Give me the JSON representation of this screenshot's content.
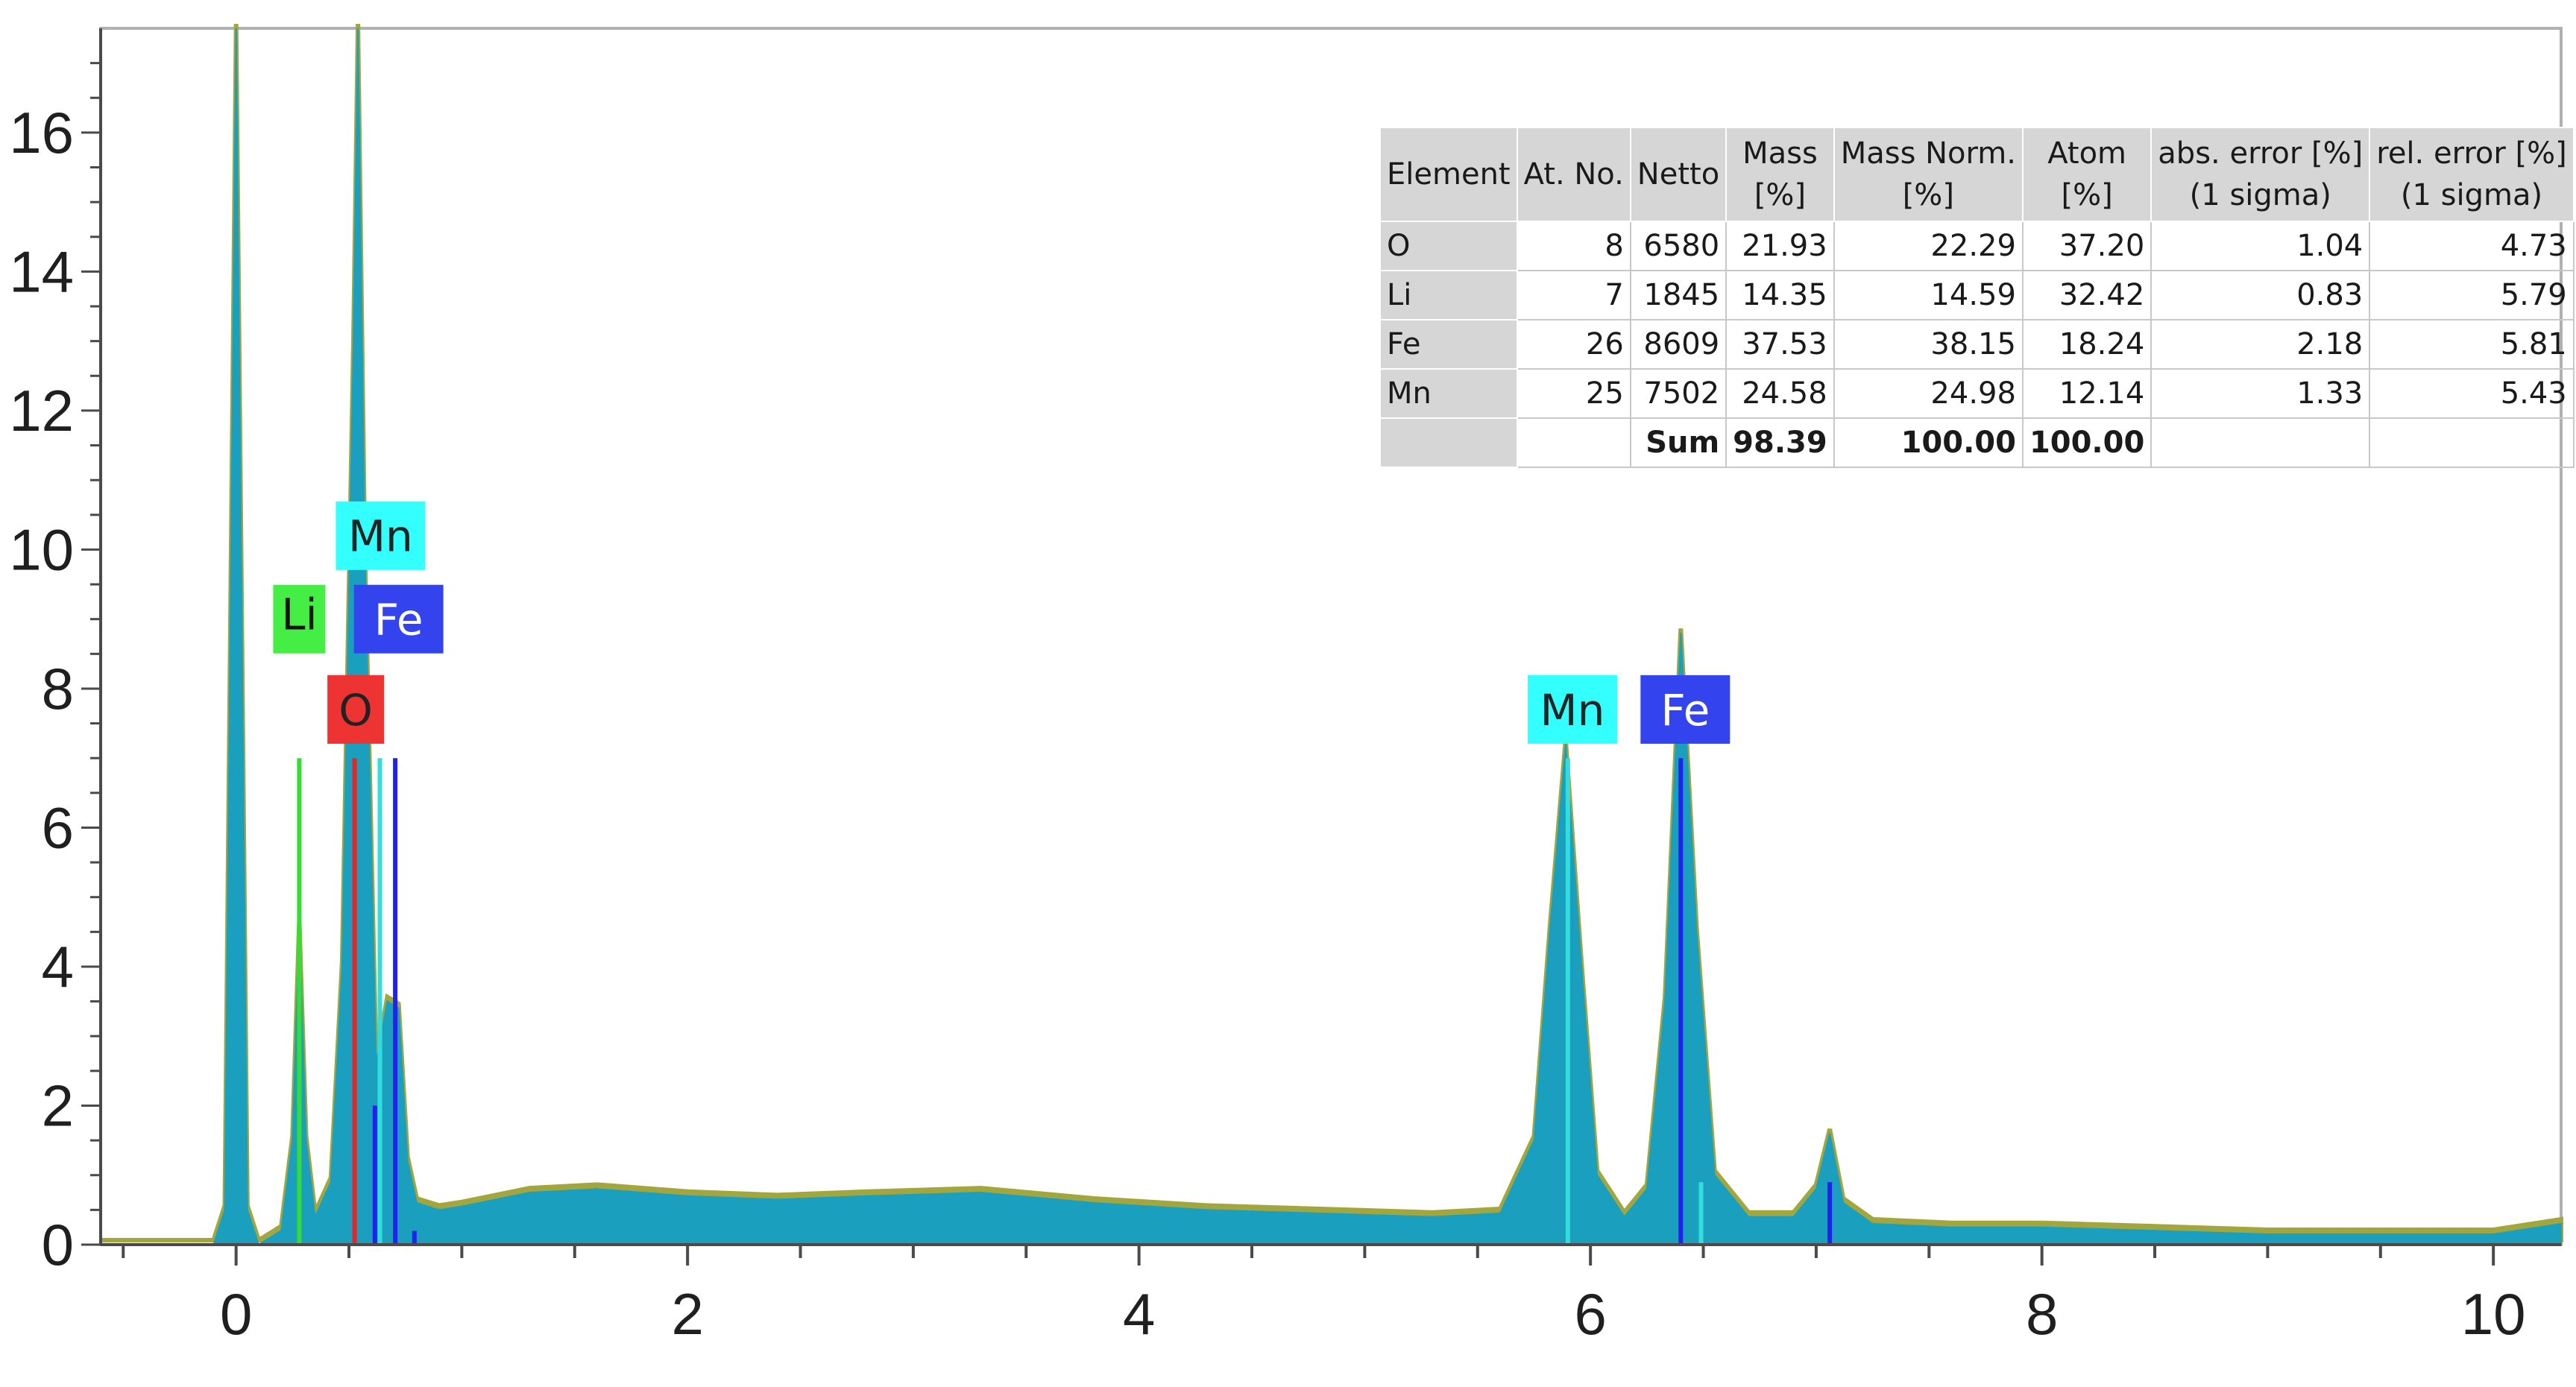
{
  "chart_data": {
    "type": "line",
    "title": "",
    "xlabel": "",
    "ylabel": "",
    "xlim": [
      -0.6,
      10.3
    ],
    "ylim": [
      0,
      17.5
    ],
    "x_ticks": [
      "0",
      "2",
      "4",
      "6",
      "8",
      "10"
    ],
    "y_ticks": [
      "0",
      "2",
      "4",
      "6",
      "8",
      "10",
      "12",
      "14",
      "16"
    ],
    "grid": false,
    "series": [
      {
        "type": "area",
        "color": "#1a9fbf",
        "x": [
          -0.6,
          -0.1,
          -0.05,
          0,
          0.05,
          0.1,
          0.2,
          0.25,
          0.28,
          0.31,
          0.35,
          0.42,
          0.47,
          0.52,
          0.54,
          0.57,
          0.62,
          0.67,
          0.72,
          0.76,
          0.8,
          0.9,
          1.0,
          1.3,
          1.6,
          2.0,
          2.4,
          2.8,
          3.3,
          3.8,
          4.3,
          4.8,
          5.3,
          5.6,
          5.75,
          5.82,
          5.89,
          5.96,
          6.03,
          6.15,
          6.25,
          6.33,
          6.4,
          6.47,
          6.55,
          6.7,
          6.9,
          7.0,
          7.06,
          7.12,
          7.25,
          7.6,
          8.0,
          8.5,
          9.0,
          9.5,
          10.0,
          10.3
        ],
        "y": [
          0,
          0,
          0.5,
          17.5,
          0.5,
          0,
          0.2,
          1.5,
          4.6,
          1.5,
          0.4,
          0.9,
          4.0,
          13.0,
          17.5,
          10.0,
          2.6,
          3.5,
          3.4,
          1.2,
          0.6,
          0.5,
          0.55,
          0.75,
          0.8,
          0.7,
          0.65,
          0.7,
          0.75,
          0.6,
          0.5,
          0.45,
          0.4,
          0.45,
          1.5,
          4.5,
          7.2,
          4.0,
          1.0,
          0.4,
          0.8,
          3.5,
          8.8,
          4.5,
          1.0,
          0.4,
          0.4,
          0.8,
          1.6,
          0.6,
          0.3,
          0.25,
          0.25,
          0.2,
          0.15,
          0.15,
          0.15,
          0.3
        ]
      }
    ],
    "element_lines": [
      {
        "element": "Li",
        "color": "#33dd33",
        "x": 0.28,
        "height": 7.0
      },
      {
        "element": "O",
        "color": "#ee2222",
        "x": 0.525,
        "height": 7.0
      },
      {
        "element": "Mn",
        "color": "#33dddd",
        "x": 0.637,
        "height": 7.0
      },
      {
        "element": "Fe",
        "color": "#2222ee",
        "x": 0.705,
        "height": 7.0
      },
      {
        "element": "Fe",
        "color": "#2222ee",
        "x": 0.615,
        "height": 2.0
      },
      {
        "element": "Fe",
        "color": "#2222ee",
        "x": 0.79,
        "height": 0.2
      },
      {
        "element": "Mn",
        "color": "#33dddd",
        "x": 5.9,
        "height": 7.0
      },
      {
        "element": "Mn",
        "color": "#33dddd",
        "x": 6.49,
        "height": 0.9
      },
      {
        "element": "Fe",
        "color": "#2222ee",
        "x": 6.4,
        "height": 7.0
      },
      {
        "element": "Fe",
        "color": "#2222ee",
        "x": 7.06,
        "height": 0.9
      }
    ],
    "annotations": [
      {
        "text": "Mn",
        "bg": "#33ffff",
        "fg": "#222222",
        "x": 0.64,
        "y": 10.2
      },
      {
        "text": "Li",
        "bg": "#44ee44",
        "fg": "#111111",
        "x": 0.28,
        "y": 9.0,
        "small": true
      },
      {
        "text": "Fe",
        "bg": "#3344ee",
        "fg": "#ffffff",
        "x": 0.72,
        "y": 9.0
      },
      {
        "text": "O",
        "bg": "#ee3333",
        "fg": "#222222",
        "x": 0.53,
        "y": 7.7
      },
      {
        "text": "Mn",
        "bg": "#33ffff",
        "fg": "#222222",
        "x": 5.92,
        "y": 7.7
      },
      {
        "text": "Fe",
        "bg": "#3344ee",
        "fg": "#ffffff",
        "x": 6.42,
        "y": 7.7
      }
    ]
  },
  "table": {
    "headers": [
      "Element",
      "At. No.",
      "Netto",
      "Mass\n[%]",
      "Mass Norm.\n[%]",
      "Atom\n[%]",
      "abs. error [%]\n(1 sigma)",
      "rel. error [%]\n(1 sigma)"
    ],
    "rows": [
      [
        "O",
        "8",
        "6580",
        "21.93",
        "22.29",
        "37.20",
        "1.04",
        "4.73"
      ],
      [
        "Li",
        "7",
        "1845",
        "14.35",
        "14.59",
        "32.42",
        "0.83",
        "5.79"
      ],
      [
        "Fe",
        "26",
        "8609",
        "37.53",
        "38.15",
        "18.24",
        "2.18",
        "5.81"
      ],
      [
        "Mn",
        "25",
        "7502",
        "24.58",
        "24.98",
        "12.14",
        "1.33",
        "5.43"
      ]
    ],
    "sum_row": [
      "",
      "",
      "Sum",
      "98.39",
      "100.00",
      "100.00",
      "",
      ""
    ]
  }
}
